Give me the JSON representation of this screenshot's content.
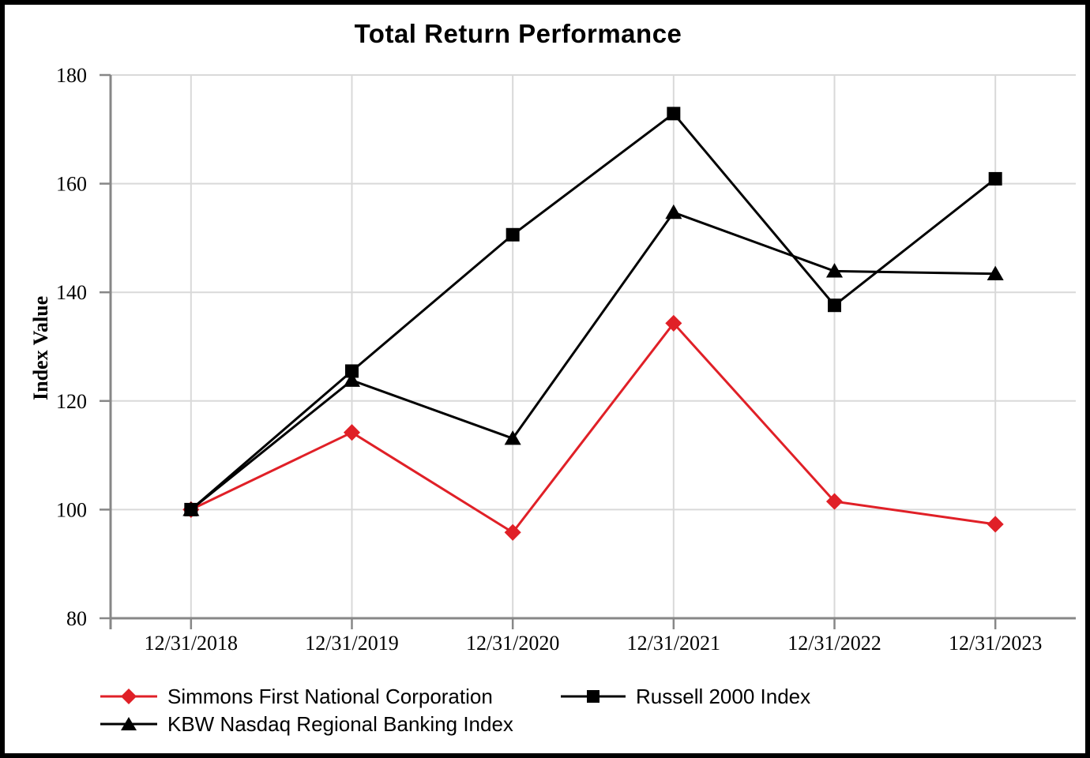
{
  "title": "Total Return Performance",
  "chart_data": {
    "type": "line",
    "title": "Total Return Performance",
    "xlabel": "",
    "ylabel": "Index Value",
    "ylim": [
      80,
      180
    ],
    "yticks": [
      80,
      100,
      120,
      140,
      160,
      180
    ],
    "grid": true,
    "legend_position": "bottom",
    "categories": [
      "12/31/2018",
      "12/31/2019",
      "12/31/2020",
      "12/31/2021",
      "12/31/2022",
      "12/31/2023"
    ],
    "series": [
      {
        "name": "Simmons First National Corporation",
        "color": "#e02027",
        "marker": "diamond",
        "values": [
          100,
          114.2,
          95.8,
          134.3,
          101.5,
          97.3
        ]
      },
      {
        "name": "Russell 2000 Index",
        "color": "#000000",
        "marker": "square",
        "values": [
          100,
          125.5,
          150.6,
          172.9,
          137.6,
          160.9
        ]
      },
      {
        "name": "KBW Nasdaq Regional Banking Index",
        "color": "#000000",
        "marker": "triangle",
        "values": [
          100,
          123.8,
          113.1,
          154.7,
          143.9,
          143.4
        ]
      }
    ]
  },
  "colors": {
    "grid": "#d9d9d9",
    "axis": "#878787",
    "frame": "#000000",
    "background": "#ffffff",
    "accent_red": "#e02027",
    "series_black": "#000000"
  }
}
